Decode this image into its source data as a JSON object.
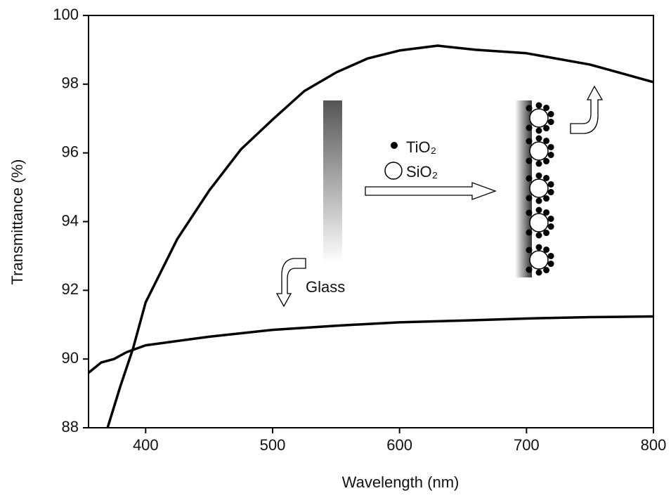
{
  "chart_data": {
    "type": "line",
    "xlabel": "Wavelength (nm)",
    "ylabel": "Transmittance (%)",
    "xlim": [
      355,
      800
    ],
    "ylim": [
      88,
      100
    ],
    "xticks": [
      400,
      500,
      600,
      700,
      800
    ],
    "yticks": [
      88,
      90,
      92,
      94,
      96,
      98,
      100
    ],
    "annotations": [
      "TiO₂",
      "SiO₂",
      "Glass"
    ],
    "series": [
      {
        "color": "#000000",
        "x": [
          370,
          380,
          390,
          400,
          425,
          450,
          475,
          500,
          525,
          550,
          575,
          600,
          630,
          660,
          700,
          750,
          800
        ],
        "values": [
          88.0,
          89.2,
          90.3,
          91.65,
          93.5,
          94.9,
          96.1,
          96.97,
          97.8,
          98.34,
          98.75,
          98.98,
          99.12,
          99.0,
          98.9,
          98.57,
          98.06
        ]
      },
      {
        "color": "#000000",
        "x": [
          355,
          365,
          375,
          385,
          400,
          450,
          500,
          550,
          600,
          650,
          700,
          750,
          800
        ],
        "values": [
          89.6,
          89.9,
          90.0,
          90.2,
          90.4,
          90.65,
          90.85,
          90.97,
          91.07,
          91.12,
          91.18,
          91.22,
          91.24
        ]
      }
    ]
  }
}
